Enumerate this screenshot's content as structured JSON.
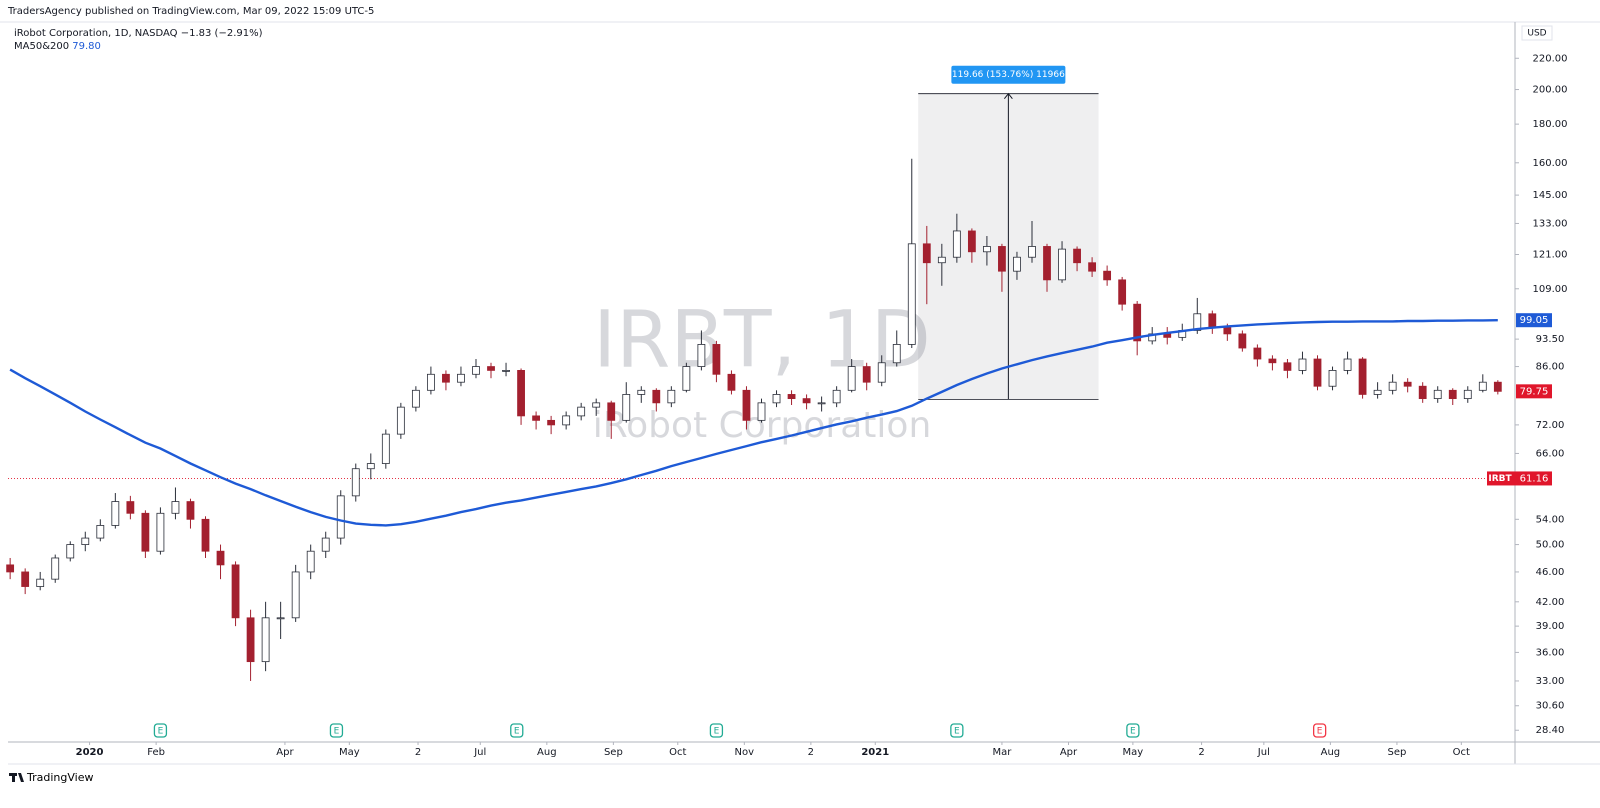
{
  "header": {
    "published": "TradersAgency published on TradingView.com, Mar 09, 2022 15:09 UTC-5",
    "symbol_line": "iRobot Corporation, 1D, NASDAQ",
    "change": "−1.83 (−2.91%)",
    "indicator": "MA50&200",
    "indicator_value": "79.80"
  },
  "footer": "TradingView",
  "chart_data": {
    "type": "candlestick",
    "watermark": "IRBT, 1D",
    "watermark_sub": "iRobot Corporation",
    "currency": "USD",
    "log_scale": true,
    "up_color": "#ffffff",
    "down_color": "#a3202f",
    "wick_color": "#2a2e39",
    "x": [
      "2019-11-25",
      "2019-12-02",
      "2019-12-09",
      "2019-12-16",
      "2019-12-23",
      "2019-12-30",
      "2020-01-06",
      "2020-01-13",
      "2020-01-20",
      "2020-01-27",
      "2020-02-03",
      "2020-02-10",
      "2020-02-17",
      "2020-02-24",
      "2020-03-02",
      "2020-03-09",
      "2020-03-16",
      "2020-03-23",
      "2020-03-30",
      "2020-04-06",
      "2020-04-13",
      "2020-04-20",
      "2020-04-27",
      "2020-05-04",
      "2020-05-11",
      "2020-05-18",
      "2020-05-25",
      "2020-06-01",
      "2020-06-08",
      "2020-06-15",
      "2020-06-22",
      "2020-06-29",
      "2020-07-06",
      "2020-07-13",
      "2020-07-20",
      "2020-07-27",
      "2020-08-03",
      "2020-08-10",
      "2020-08-17",
      "2020-08-24",
      "2020-08-31",
      "2020-09-07",
      "2020-09-14",
      "2020-09-21",
      "2020-09-28",
      "2020-10-05",
      "2020-10-12",
      "2020-10-19",
      "2020-10-26",
      "2020-11-02",
      "2020-11-09",
      "2020-11-16",
      "2020-11-23",
      "2020-11-30",
      "2020-12-07",
      "2020-12-14",
      "2020-12-21",
      "2020-12-28",
      "2021-01-04",
      "2021-01-11",
      "2021-01-18",
      "2021-01-25",
      "2021-02-01",
      "2021-02-08",
      "2021-02-15",
      "2021-02-22",
      "2021-03-01",
      "2021-03-08",
      "2021-03-15",
      "2021-03-22",
      "2021-03-29",
      "2021-04-05",
      "2021-04-12",
      "2021-04-19",
      "2021-04-26",
      "2021-05-03",
      "2021-05-10",
      "2021-05-17",
      "2021-05-24",
      "2021-05-31",
      "2021-06-07",
      "2021-06-14",
      "2021-06-21",
      "2021-06-28",
      "2021-07-05",
      "2021-07-12",
      "2021-07-19",
      "2021-07-26",
      "2021-08-02",
      "2021-08-09",
      "2021-08-16",
      "2021-08-23",
      "2021-08-30",
      "2021-09-06",
      "2021-09-13",
      "2021-09-20",
      "2021-09-27",
      "2021-10-04",
      "2021-10-11",
      "2021-10-18"
    ],
    "open": [
      47,
      46,
      44,
      45,
      48,
      50,
      51,
      53,
      57,
      55,
      49,
      55,
      57,
      54,
      49,
      47,
      40,
      35,
      40,
      40,
      46,
      49,
      51,
      58,
      63,
      64,
      70,
      76,
      80,
      84,
      82,
      84,
      86,
      85,
      85,
      74,
      73,
      72,
      74,
      76,
      77,
      73,
      79,
      80,
      77,
      80,
      86,
      92,
      84,
      80,
      73,
      77,
      79,
      78,
      77,
      77,
      80,
      86,
      82,
      87,
      92,
      125,
      118,
      120,
      130,
      122,
      124,
      115,
      120,
      124,
      112,
      123,
      118,
      115,
      112,
      104,
      93,
      95,
      94,
      96,
      101,
      97,
      95,
      91,
      88,
      87,
      85,
      88,
      81,
      85,
      88,
      79,
      80,
      82,
      81,
      78,
      80,
      78,
      80,
      82
    ],
    "high": [
      48,
      46.5,
      46,
      48.5,
      50.5,
      52,
      54,
      58.5,
      58,
      55.5,
      56,
      59.5,
      57.5,
      54.5,
      50,
      47.5,
      41,
      42,
      42,
      47,
      50,
      52,
      59,
      64,
      66,
      71,
      77,
      81,
      86,
      85,
      86,
      88,
      87,
      87,
      85.5,
      75,
      74,
      75,
      77,
      78,
      77.5,
      82,
      81,
      80.5,
      81,
      87,
      96,
      93,
      85,
      81,
      78,
      80,
      80,
      79,
      78.5,
      81,
      88,
      87,
      89,
      96,
      162,
      132,
      125,
      137,
      131,
      128,
      125,
      122,
      134,
      125,
      126,
      124,
      120,
      117,
      113,
      105,
      97,
      97,
      98,
      106,
      102,
      98,
      96,
      92,
      89,
      88,
      90,
      89,
      86,
      90,
      88.5,
      82,
      84,
      83,
      82,
      81,
      80.5,
      81,
      84,
      82.5
    ],
    "low": [
      45,
      43,
      43.5,
      44.5,
      47.5,
      49,
      50.5,
      52.5,
      54,
      48,
      48.5,
      54,
      52.5,
      48,
      45,
      39,
      33,
      34,
      37.5,
      39.5,
      45,
      48,
      50,
      57,
      61,
      63,
      69,
      75,
      79,
      80,
      81,
      83,
      83,
      83.5,
      72,
      71,
      70,
      71,
      73,
      74,
      69,
      72.5,
      77,
      75,
      76,
      79.5,
      85,
      82,
      79,
      71,
      72.5,
      76,
      76.5,
      75.5,
      75,
      76,
      79.5,
      80,
      81,
      86,
      91,
      104,
      110,
      118,
      118,
      117,
      108,
      112,
      118,
      108,
      111,
      115,
      113,
      110,
      102,
      89,
      92,
      92,
      93,
      95,
      95,
      93,
      90,
      86,
      85,
      83,
      84,
      80,
      80,
      84,
      78,
      78,
      79,
      79.5,
      77,
      77,
      76.5,
      77,
      79.5,
      79
    ],
    "close": [
      46,
      44,
      45,
      48,
      50,
      51,
      53,
      57,
      55,
      49,
      55,
      57,
      54,
      49,
      47,
      40,
      35,
      40,
      40,
      46,
      49,
      51,
      58,
      63,
      64,
      70,
      76,
      80,
      84,
      82,
      84,
      86,
      85,
      85,
      74,
      73,
      72,
      74,
      76,
      77,
      73,
      79,
      80,
      77,
      80,
      86,
      92,
      84,
      80,
      73,
      77,
      79,
      78,
      77,
      77,
      80,
      86,
      82,
      87,
      92,
      125,
      118,
      120,
      130,
      122,
      124,
      115,
      120,
      124,
      112,
      123,
      118,
      115,
      112,
      104,
      93,
      95,
      94,
      96,
      101,
      97,
      95,
      91,
      88,
      87,
      85,
      88,
      81,
      85,
      88,
      79,
      80,
      82,
      81,
      78,
      80,
      78,
      80,
      82,
      79.75
    ],
    "series": [
      {
        "name": "MA50&200",
        "color": "#1e5ad6",
        "values": [
          85.2,
          83,
          81,
          79,
          77,
          75,
          73.2,
          71.5,
          69.8,
          68.2,
          67,
          65.5,
          64,
          62.7,
          61.4,
          60.2,
          59.2,
          58.1,
          57.1,
          56.1,
          55.2,
          54.4,
          53.8,
          53.3,
          53.1,
          53,
          53.2,
          53.6,
          54.1,
          54.6,
          55.2,
          55.7,
          56.3,
          56.8,
          57.2,
          57.7,
          58.2,
          58.7,
          59.2,
          59.7,
          60.3,
          61,
          61.8,
          62.6,
          63.5,
          64.3,
          65.1,
          65.9,
          66.7,
          67.5,
          68.3,
          69,
          69.7,
          70.5,
          71.3,
          72.1,
          72.8,
          73.6,
          74.3,
          75.1,
          76.3,
          78,
          79.6,
          81.3,
          82.8,
          84.2,
          85.5,
          86.6,
          87.7,
          88.7,
          89.6,
          90.5,
          91.4,
          92.5,
          93.2,
          94,
          94.7,
          95.3,
          95.8,
          96.4,
          96.8,
          97.2,
          97.5,
          97.8,
          98,
          98.2,
          98.4,
          98.5,
          98.6,
          98.6,
          98.7,
          98.7,
          98.7,
          98.8,
          98.8,
          98.9,
          98.9,
          99,
          99,
          99.05
        ]
      }
    ],
    "xlim": [
      "2019-11-24",
      "2021-10-26"
    ],
    "ylim": [
      27.4,
      245.7
    ],
    "yticks": [
      {
        "value": 220,
        "label": "220.00"
      },
      {
        "value": 200,
        "label": "200.00"
      },
      {
        "value": 180,
        "label": "180.00"
      },
      {
        "value": 160,
        "label": "160.00"
      },
      {
        "value": 145,
        "label": "145.00"
      },
      {
        "value": 133,
        "label": "133.00"
      },
      {
        "value": 121,
        "label": "121.00"
      },
      {
        "value": 109,
        "label": "109.00"
      },
      {
        "value": 93.5,
        "label": "93.50"
      },
      {
        "value": 86,
        "label": "86.00"
      },
      {
        "value": 72,
        "label": "72.00"
      },
      {
        "value": 66,
        "label": "66.00"
      },
      {
        "value": 54,
        "label": "54.00"
      },
      {
        "value": 50,
        "label": "50.00"
      },
      {
        "value": 46,
        "label": "46.00"
      },
      {
        "value": 42,
        "label": "42.00"
      },
      {
        "value": 39,
        "label": "39.00"
      },
      {
        "value": 36,
        "label": "36.00"
      },
      {
        "value": 33,
        "label": "33.00"
      },
      {
        "value": 30.6,
        "label": "30.60"
      },
      {
        "value": 28.4,
        "label": "28.40"
      }
    ],
    "xticks": [
      {
        "value": "2020-01-01",
        "label": "2020",
        "bold": true
      },
      {
        "value": "2020-02-01",
        "label": "Feb"
      },
      {
        "value": "2020-04-01",
        "label": "Apr"
      },
      {
        "value": "2020-05-01",
        "label": "May"
      },
      {
        "value": "2020-06-02",
        "label": "2"
      },
      {
        "value": "2020-07-01",
        "label": "Jul"
      },
      {
        "value": "2020-08-01",
        "label": "Aug"
      },
      {
        "value": "2020-09-01",
        "label": "Sep"
      },
      {
        "value": "2020-10-01",
        "label": "Oct"
      },
      {
        "value": "2020-11-01",
        "label": "Nov"
      },
      {
        "value": "2020-12-02",
        "label": "2"
      },
      {
        "value": "2021-01-01",
        "label": "2021",
        "bold": true
      },
      {
        "value": "2021-03-01",
        "label": "Mar"
      },
      {
        "value": "2021-04-01",
        "label": "Apr"
      },
      {
        "value": "2021-05-01",
        "label": "May"
      },
      {
        "value": "2021-06-02",
        "label": "2"
      },
      {
        "value": "2021-07-01",
        "label": "Jul"
      },
      {
        "value": "2021-08-01",
        "label": "Aug"
      },
      {
        "value": "2021-09-01",
        "label": "Sep"
      },
      {
        "value": "2021-10-01",
        "label": "Oct"
      }
    ],
    "price_badges": [
      {
        "value": 99.05,
        "color": "#1e5ad6"
      },
      {
        "value": 79.75,
        "color": "#e0162b"
      },
      {
        "name": "IRBT",
        "value": 61.16,
        "color": "#e0162b",
        "line": true
      }
    ],
    "measure": {
      "from": "2021-01-21",
      "to": "2021-04-15",
      "low": 77.82,
      "high": 197.48,
      "label": "119.66 (153.76%) 11966",
      "color": "#2196f3"
    },
    "earnings": [
      {
        "x": "2020-02-03",
        "label": "E",
        "color": "#22ab94"
      },
      {
        "x": "2020-04-25",
        "label": "E",
        "color": "#22ab94"
      },
      {
        "x": "2020-07-18",
        "label": "E",
        "color": "#22ab94"
      },
      {
        "x": "2020-10-19",
        "label": "E",
        "color": "#22ab94"
      },
      {
        "x": "2021-02-08",
        "label": "E",
        "color": "#22ab94"
      },
      {
        "x": "2021-05-01",
        "label": "E",
        "color": "#22ab94"
      },
      {
        "x": "2021-07-27",
        "label": "E",
        "color": "#f23645"
      }
    ]
  }
}
